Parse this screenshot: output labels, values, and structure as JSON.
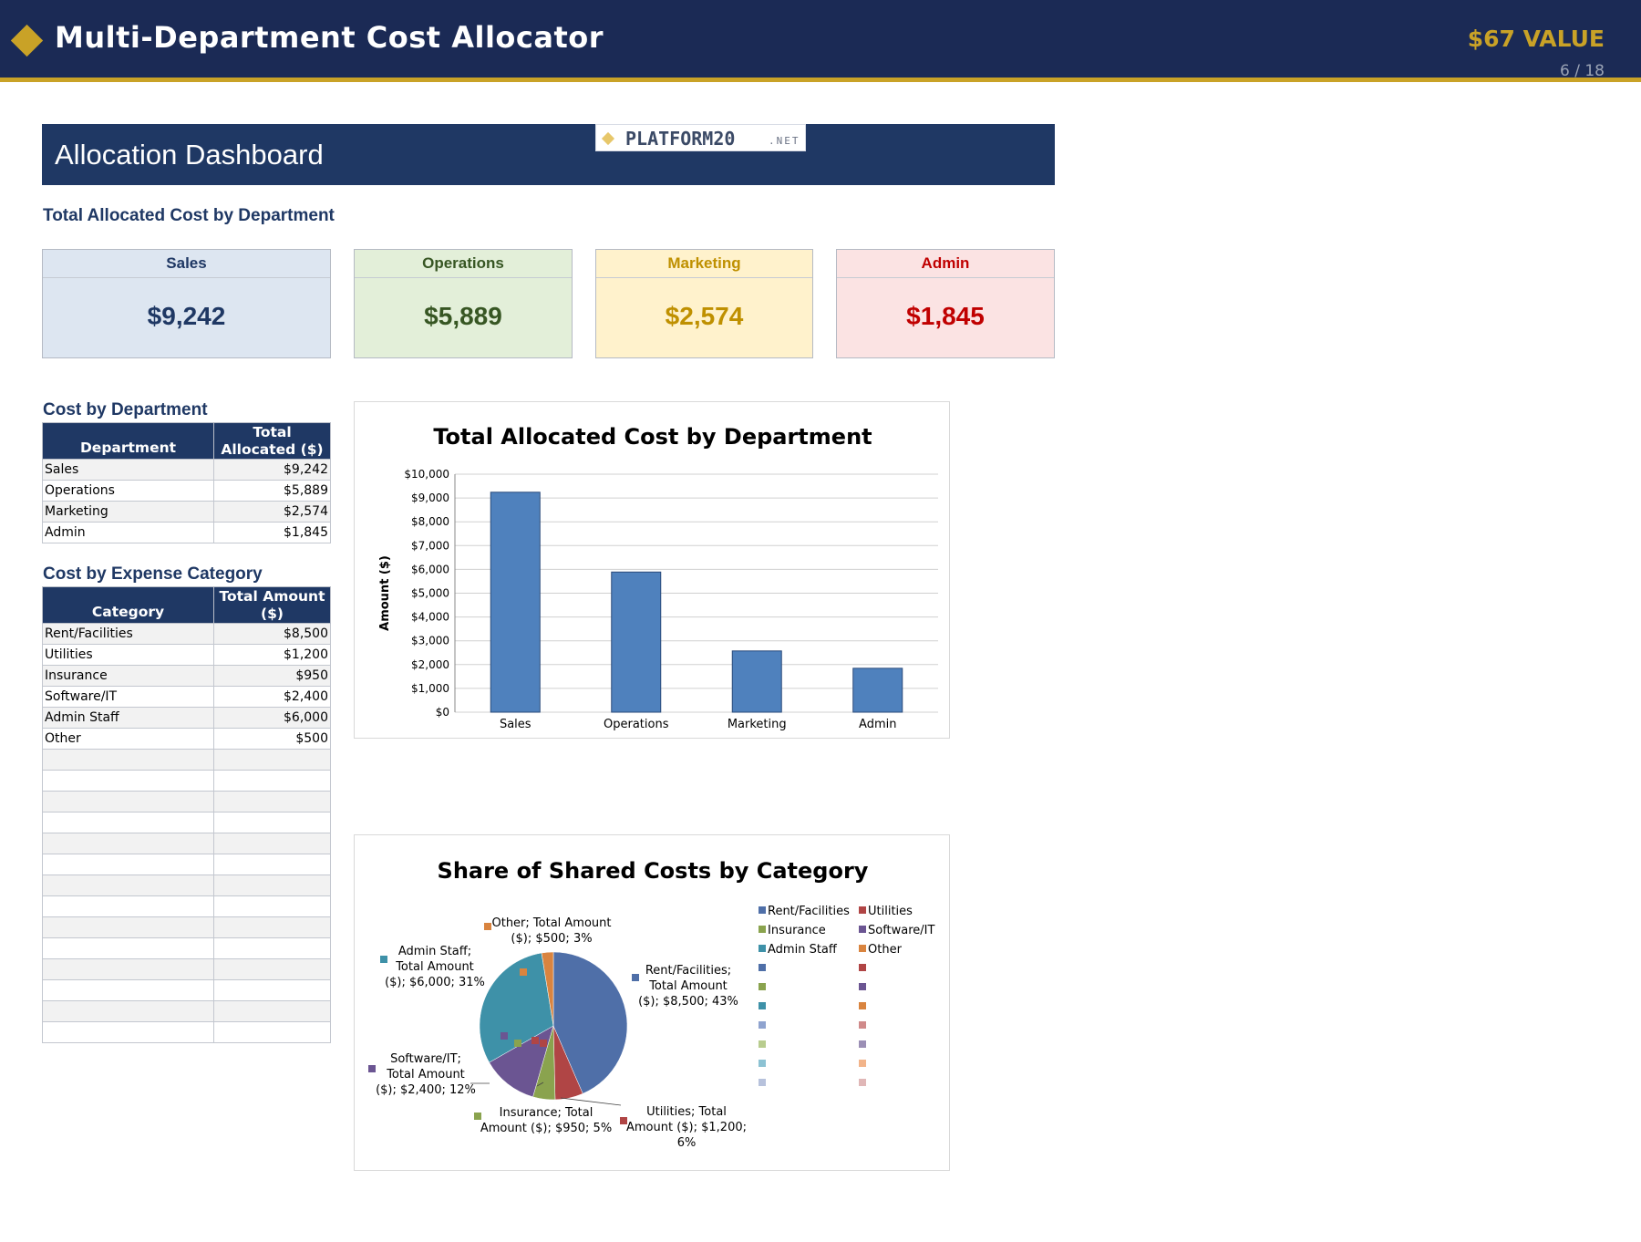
{
  "header": {
    "title": "Multi-Department Cost Allocator",
    "value_badge": "$67 VALUE",
    "pager": "6 / 18"
  },
  "dashboard": {
    "title": "Allocation Dashboard",
    "logo_text": "PLATFORM20",
    "logo_suffix": ".NET",
    "kpi_section_title": "Total Allocated Cost by Department"
  },
  "kpis": [
    {
      "label": "Sales",
      "value": "$9,242",
      "bg": "#dde6f1",
      "color": "#1f3864"
    },
    {
      "label": "Operations",
      "value": "$5,889",
      "bg": "#e3efd9",
      "color": "#375623"
    },
    {
      "label": "Marketing",
      "value": "$2,574",
      "bg": "#fff2cc",
      "color": "#bf9000"
    },
    {
      "label": "Admin",
      "value": "$1,845",
      "bg": "#fbe3e3",
      "color": "#c00000"
    }
  ],
  "dept_table": {
    "title": "Cost by Department",
    "headers": [
      "Department",
      "Total Allocated ($)"
    ],
    "rows": [
      [
        "Sales",
        "$9,242"
      ],
      [
        "Operations",
        "$5,889"
      ],
      [
        "Marketing",
        "$2,574"
      ],
      [
        "Admin",
        "$1,845"
      ]
    ]
  },
  "category_table": {
    "title": "Cost by Expense Category",
    "headers": [
      "Category",
      "Total Amount ($)"
    ],
    "rows": [
      [
        "Rent/Facilities",
        "$8,500"
      ],
      [
        "Utilities",
        "$1,200"
      ],
      [
        "Insurance",
        "$950"
      ],
      [
        "Software/IT",
        "$2,400"
      ],
      [
        "Admin Staff",
        "$6,000"
      ],
      [
        "Other",
        "$500"
      ]
    ]
  },
  "chart_data": [
    {
      "type": "bar",
      "title": "Total Allocated Cost by Department",
      "xlabel": "",
      "ylabel": "Amount ($)",
      "categories": [
        "Sales",
        "Operations",
        "Marketing",
        "Admin"
      ],
      "values": [
        9242,
        5889,
        2574,
        1845
      ],
      "ylim": [
        0,
        10000
      ],
      "yticks": [
        0,
        1000,
        2000,
        3000,
        4000,
        5000,
        6000,
        7000,
        8000,
        9000,
        10000
      ],
      "ytick_labels": [
        "$0",
        "$1,000",
        "$2,000",
        "$3,000",
        "$4,000",
        "$5,000",
        "$6,000",
        "$7,000",
        "$8,000",
        "$9,000",
        "$10,000"
      ],
      "grid": true,
      "color": "#4f81bd"
    },
    {
      "type": "pie",
      "title": "Share of Shared Costs by Category",
      "categories": [
        "Rent/Facilities",
        "Utilities",
        "Insurance",
        "Software/IT",
        "Admin Staff",
        "Other"
      ],
      "values": [
        8500,
        1200,
        950,
        2400,
        6000,
        500
      ],
      "percents": [
        43,
        6,
        5,
        12,
        31,
        3
      ],
      "data_labels": [
        [
          "Rent/Facilities;",
          "Total Amount",
          "($); $8,500; 43%"
        ],
        [
          "Utilities; Total",
          "Amount ($); $1,200;",
          "6%"
        ],
        [
          "Insurance; Total",
          "Amount ($); $950; 5%"
        ],
        [
          "Software/IT;",
          "Total Amount",
          "($); $2,400; 12%"
        ],
        [
          "Admin Staff;",
          "Total Amount",
          "($); $6,000; 31%"
        ],
        [
          "Other; Total Amount",
          "($); $500; 3%"
        ]
      ],
      "colors": [
        "#4f6fa8",
        "#b04545",
        "#8aa34e",
        "#6b5592",
        "#3e91a8",
        "#d9843f"
      ],
      "legend_position": "right",
      "legend_extra_colors": [
        "#4f6fa8",
        "#b04545",
        "#8aa34e",
        "#6b5592",
        "#3e91a8",
        "#d9843f",
        "#8fa3cf",
        "#d08a8a",
        "#b8cc8e",
        "#9b8fb5",
        "#8cc2d3",
        "#f2b48a",
        "#b7c2dc",
        "#e0b7b7"
      ]
    }
  ]
}
